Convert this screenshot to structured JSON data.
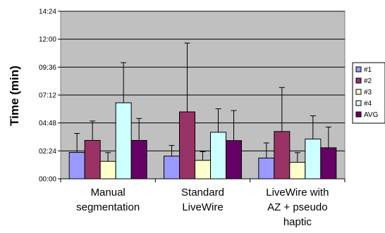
{
  "chart_data": {
    "type": "bar",
    "ylabel": "Time (min)",
    "xlabel": "",
    "y_unit": "minutes",
    "ylim": [
      0,
      864
    ],
    "y_ticks": [
      {
        "value": 0,
        "label": "00:00"
      },
      {
        "value": 144,
        "label": "02:24"
      },
      {
        "value": 288,
        "label": "04:48"
      },
      {
        "value": 432,
        "label": "07:12"
      },
      {
        "value": 576,
        "label": "09:36"
      },
      {
        "value": 720,
        "label": "12:00"
      },
      {
        "value": 864,
        "label": "14:24"
      }
    ],
    "grid": true,
    "legend_position": "right",
    "categories": [
      [
        "Manual",
        "segmentation"
      ],
      [
        "Standard",
        "LiveWire"
      ],
      [
        "LiveWire with",
        "AZ + pseudo",
        "haptic"
      ]
    ],
    "series": [
      {
        "name": "#1",
        "color": "#9999ff",
        "values": [
          136,
          117,
          107
        ],
        "errors": [
          98,
          55,
          78
        ]
      },
      {
        "name": "#2",
        "color": "#993366",
        "values": [
          198,
          345,
          244
        ],
        "errors": [
          100,
          355,
          227
        ]
      },
      {
        "name": "#3",
        "color": "#ffffcc",
        "values": [
          90,
          95,
          85
        ],
        "errors": [
          45,
          45,
          50
        ]
      },
      {
        "name": "#4",
        "color": "#ccffff",
        "values": [
          392,
          240,
          205
        ],
        "errors": [
          207,
          121,
          120
        ]
      },
      {
        "name": "AVG",
        "color": "#660066",
        "values": [
          198,
          197,
          160
        ],
        "errors": [
          113,
          155,
          107
        ]
      }
    ]
  }
}
